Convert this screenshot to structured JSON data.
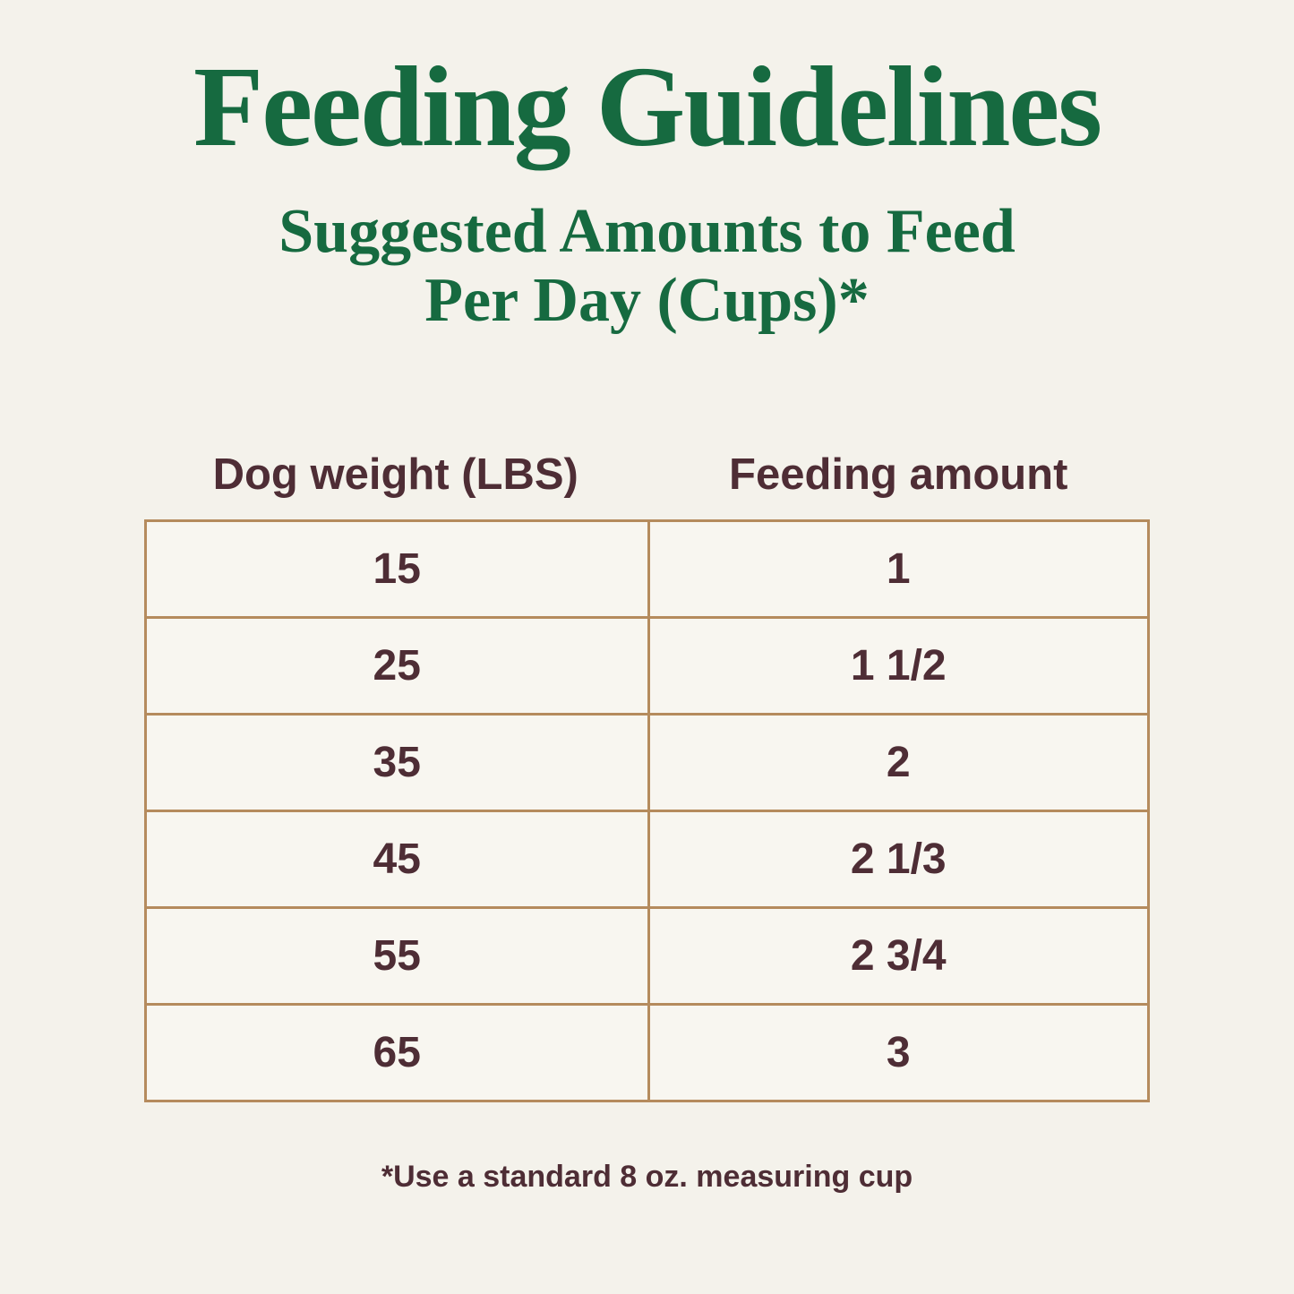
{
  "header": {
    "title": "Feeding Guidelines",
    "subtitle_line1": "Suggested Amounts to Feed",
    "subtitle_line2": "Per Day (Cups)*"
  },
  "table": {
    "col1_header": "Dog weight (LBS)",
    "col2_header": "Feeding amount",
    "rows": [
      [
        "15",
        "1"
      ],
      [
        "25",
        "1 1/2"
      ],
      [
        "35",
        "2"
      ],
      [
        "45",
        "2 1/3"
      ],
      [
        "55",
        "2 3/4"
      ],
      [
        "65",
        "3"
      ]
    ]
  },
  "footnote": "*Use a standard 8 oz. measuring cup",
  "colors": {
    "background": "#f4f2eb",
    "cell_background": "#f8f6f0",
    "title_green": "#166a40",
    "table_border_tan": "#b58b5d",
    "text_brown": "#4e2d35"
  },
  "chart_data": {
    "type": "table",
    "title": "Feeding Guidelines",
    "subtitle": "Suggested Amounts to Feed Per Day (Cups)*",
    "columns": [
      "Dog weight (LBS)",
      "Feeding amount"
    ],
    "rows": [
      [
        "15",
        "1"
      ],
      [
        "25",
        "1 1/2"
      ],
      [
        "35",
        "2"
      ],
      [
        "45",
        "2 1/3"
      ],
      [
        "55",
        "2 3/4"
      ],
      [
        "65",
        "3"
      ]
    ],
    "weights_lbs": [
      15,
      25,
      35,
      45,
      55,
      65
    ],
    "cups_per_day": [
      1,
      1.5,
      2,
      2.33,
      2.75,
      3
    ],
    "footnote": "*Use a standard 8 oz. measuring cup"
  }
}
